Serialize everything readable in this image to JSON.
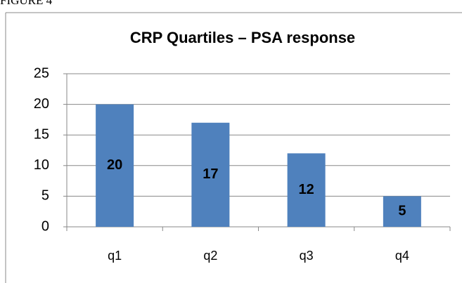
{
  "figure_label": "FIGURE 4",
  "chart_data": {
    "type": "bar",
    "title": "CRP Quartiles – PSA response",
    "categories": [
      "q1",
      "q2",
      "q3",
      "q4"
    ],
    "values": [
      20,
      17,
      12,
      5
    ],
    "color": "#4f81bd",
    "ylim": [
      0,
      25
    ],
    "yticks": [
      0,
      5,
      10,
      15,
      20,
      25
    ],
    "grid": true
  }
}
